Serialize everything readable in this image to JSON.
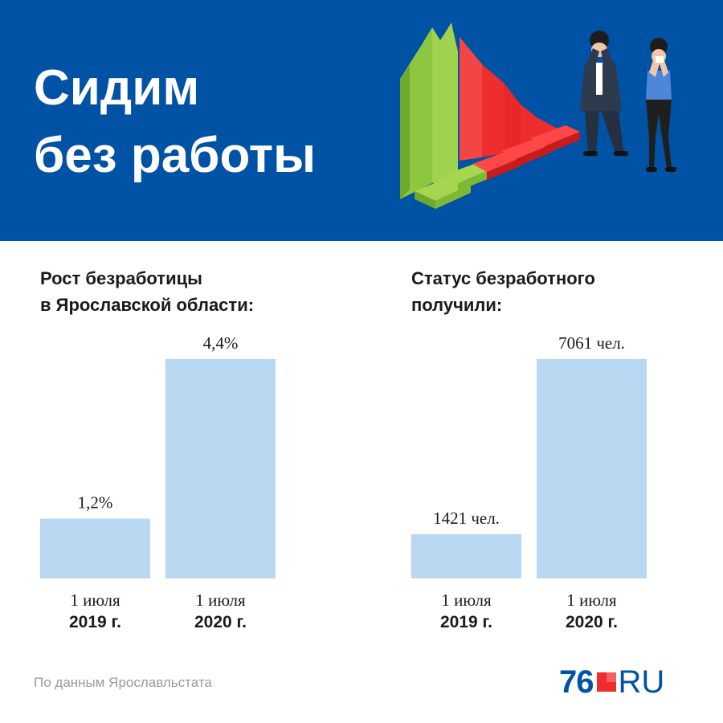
{
  "header": {
    "title_line1": "Сидим",
    "title_line2": "без работы",
    "background": "#0052a5"
  },
  "illustration": {
    "icons": [
      "declining-bar-chart-icon",
      "distressed-man-icon",
      "distressed-woman-icon"
    ],
    "colors": {
      "green": "#8dc63f",
      "red": "#ee2d2d",
      "skin": "#f2c7a5",
      "suit": "#2e3a4d",
      "shirt": "#4f86d9"
    }
  },
  "source": "По данным Ярославльстата",
  "logo": {
    "number": "76",
    "suffix": "RU",
    "red": "#ee2d2d",
    "blue": "#0052a5"
  },
  "chart_data": [
    {
      "type": "bar",
      "title_line1": "Рост безработицы",
      "title_line2": "в Ярославской области:",
      "categories": [
        {
          "line1": "1 июля",
          "line2": "2019 г."
        },
        {
          "line1": "1 июля",
          "line2": "2020 г."
        }
      ],
      "values": [
        1.2,
        4.4
      ],
      "value_labels": [
        "1,2%",
        "4,4%"
      ],
      "unit": "%",
      "ylim": [
        0,
        4.4
      ],
      "bar_color": "#b7d8f0",
      "grid": false
    },
    {
      "type": "bar",
      "title_line1": "Статус безработного",
      "title_line2": "получили:",
      "categories": [
        {
          "line1": "1 июля",
          "line2": "2019 г."
        },
        {
          "line1": "1 июля",
          "line2": "2020 г."
        }
      ],
      "values": [
        1421,
        7061
      ],
      "value_labels": [
        "1421 чел.",
        "7061 чел."
      ],
      "unit": "чел.",
      "ylim": [
        0,
        7061
      ],
      "bar_color": "#b7d8f0",
      "grid": false
    }
  ]
}
